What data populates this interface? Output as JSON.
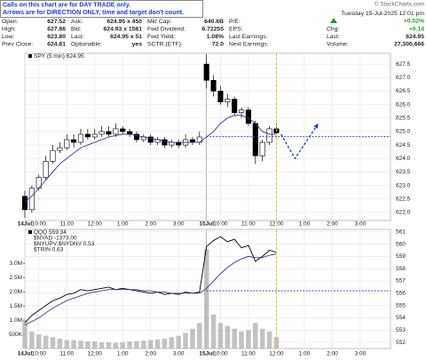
{
  "header": {
    "note_lines": [
      "Calls on this chart are for DAY TRADE only.",
      "Arrows are for DIRECTION ONLY, time and target don't count."
    ],
    "brand": "© StockCharts.com",
    "datetime": "Tuesday 15-Jul-2025 12:01 pm",
    "change_pct": "+0.02%",
    "quote": [
      [
        {
          "label": "Open:",
          "value": "627.52"
        },
        {
          "label": "High:",
          "value": "627.86"
        },
        {
          "label": "Low:",
          "value": "623.80"
        },
        {
          "label": "Prev Close:",
          "value": "624.81"
        }
      ],
      [
        {
          "label": "Ask:",
          "value": "624.95 x 450"
        },
        {
          "label": "Bid:",
          "value": "624.93 x 1581"
        },
        {
          "label": "Last:",
          "value": "624.95 x 51"
        },
        {
          "label": "Optionable:",
          "value": "yes"
        }
      ],
      [
        {
          "label": "Mkt Cap:",
          "value": "640.6B"
        },
        {
          "label": "Fwd Dividend:",
          "value": "6.72255"
        },
        {
          "label": "Fwd Yield:",
          "value": "1.08%"
        },
        {
          "label": "SCTR (ETF):",
          "value": "72.0"
        }
      ],
      [
        {
          "label": "P/E:"
        },
        {
          "label": "EPS:"
        },
        {
          "label": "Last Earnings:"
        },
        {
          "label": "Next Earnings:"
        }
      ],
      [
        {
          "label": "Chg:",
          "value": "+0.14"
        },
        {
          "label": "Last:",
          "value": "624.95"
        },
        {
          "label": "Volume:",
          "value": "27,300,666"
        }
      ]
    ]
  },
  "chart_data": [
    {
      "type": "candlestick",
      "grid": true,
      "x": [
        0,
        3,
        6,
        9,
        12,
        15,
        18,
        21,
        24,
        27,
        30,
        33,
        36,
        39,
        42,
        45,
        48,
        51,
        54,
        57,
        60,
        63,
        66,
        69,
        72,
        75,
        78,
        81,
        84,
        87,
        90,
        93,
        96,
        99,
        102,
        105,
        108
      ],
      "xlim": [
        0,
        157
      ],
      "xticks": [
        {
          "value": 0,
          "label": "14Jul"
        },
        {
          "value": 6,
          "label": "10:00"
        },
        {
          "value": 18,
          "label": "11:00"
        },
        {
          "value": 30,
          "label": "12:00"
        },
        {
          "value": 42,
          "label": "1:00"
        },
        {
          "value": 54,
          "label": "2:00"
        },
        {
          "value": 66,
          "label": "3:00"
        },
        {
          "value": 78,
          "label": "15Jul"
        },
        {
          "value": 84,
          "label": "10:00"
        },
        {
          "value": 96,
          "label": "11:00"
        },
        {
          "value": 108,
          "label": "12:00"
        },
        {
          "value": 120,
          "label": "1:00"
        },
        {
          "value": 132,
          "label": "2:00"
        },
        {
          "value": 144,
          "label": "3:00"
        }
      ],
      "ylim": [
        621.7,
        627.9
      ],
      "yticks": [
        {
          "value": 622,
          "label": "622.0"
        },
        622.5,
        {
          "value": 623,
          "label": "623.0"
        },
        623.5,
        {
          "value": 624,
          "label": "624.0"
        },
        624.5,
        {
          "value": 625,
          "label": "625.0"
        },
        625.5,
        {
          "value": 626,
          "label": "626.0"
        },
        626.5,
        {
          "value": 627,
          "label": "627.0"
        },
        627.5
      ],
      "series": [
        {
          "name": "SPY (5 min) 624.95",
          "color": "#000000",
          "open": [
            622.6,
            622.1,
            622.9,
            623.3,
            623.9,
            624.3,
            624.4,
            624.7,
            624.6,
            624.9,
            624.8,
            624.9,
            625.0,
            624.9,
            625.1,
            625.0,
            624.9,
            624.7,
            624.8,
            624.6,
            624.7,
            624.5,
            624.6,
            624.5,
            624.7,
            624.6,
            627.5,
            626.9,
            626.5,
            626.1,
            626.2,
            625.7,
            625.8,
            625.3,
            624.1,
            624.6,
            625.1
          ],
          "high": [
            622.8,
            623.0,
            623.4,
            624.1,
            624.5,
            624.6,
            624.9,
            624.9,
            625.1,
            625.1,
            625.1,
            625.2,
            625.2,
            625.3,
            625.2,
            625.1,
            625.0,
            624.9,
            624.9,
            624.8,
            624.8,
            624.7,
            624.7,
            624.9,
            624.8,
            625.0,
            627.86,
            627.1,
            626.7,
            626.4,
            626.3,
            625.9,
            625.9,
            625.4,
            624.7,
            625.2,
            625.3
          ],
          "low": [
            621.8,
            622.0,
            622.8,
            623.2,
            623.8,
            624.2,
            624.3,
            624.4,
            624.5,
            624.7,
            624.7,
            624.8,
            624.8,
            624.8,
            624.9,
            624.8,
            624.6,
            624.6,
            624.5,
            624.5,
            624.4,
            624.4,
            624.4,
            624.4,
            624.5,
            624.5,
            626.6,
            626.3,
            626.0,
            625.9,
            625.6,
            625.5,
            625.2,
            623.8,
            623.9,
            624.5,
            624.8
          ],
          "close": [
            622.1,
            622.9,
            623.3,
            623.9,
            624.3,
            624.4,
            624.7,
            624.6,
            624.9,
            624.8,
            624.9,
            625.0,
            624.9,
            625.1,
            625.0,
            624.9,
            624.7,
            624.8,
            624.6,
            624.7,
            624.5,
            624.6,
            624.5,
            624.7,
            624.6,
            624.8,
            626.9,
            626.5,
            626.1,
            626.2,
            625.7,
            625.8,
            625.3,
            624.1,
            624.6,
            625.1,
            624.95
          ]
        }
      ],
      "ma": {
        "color": "#2a3a9e",
        "values": [
          622.4,
          622.6,
          622.9,
          623.2,
          623.5,
          623.8,
          624.0,
          624.2,
          624.4,
          624.5,
          624.6,
          624.7,
          624.8,
          624.85,
          624.9,
          624.9,
          624.85,
          624.8,
          624.75,
          624.7,
          624.65,
          624.6,
          624.6,
          624.6,
          624.6,
          624.6,
          624.8,
          625.0,
          625.3,
          625.5,
          625.6,
          625.6,
          625.5,
          625.3,
          625.0,
          624.9,
          624.9
        ]
      },
      "prev_close_line": {
        "x": 78,
        "value": 624.81,
        "color": "#1a2fc0"
      },
      "current_marker": {
        "x": 108,
        "color": "#f2c200"
      },
      "projection": {
        "color": "#1a3fd0",
        "x": [
          110,
          116,
          126
        ],
        "y": [
          624.9,
          624.0,
          625.3
        ]
      }
    },
    {
      "type": "candlestick",
      "grid": true,
      "x": [
        0,
        3,
        6,
        9,
        12,
        15,
        18,
        21,
        24,
        27,
        30,
        33,
        36,
        39,
        42,
        45,
        48,
        51,
        54,
        57,
        60,
        63,
        66,
        69,
        72,
        75,
        78,
        81,
        84,
        87,
        90,
        93,
        96,
        99,
        102,
        105,
        108
      ],
      "xlim": [
        0,
        157
      ],
      "xticks": [
        {
          "value": 0,
          "label": "14Jul"
        },
        {
          "value": 6,
          "label": "10:00"
        },
        {
          "value": 18,
          "label": "11:00"
        },
        {
          "value": 30,
          "label": "12:00"
        },
        {
          "value": 42,
          "label": "1:00"
        },
        {
          "value": 54,
          "label": "2:00"
        },
        {
          "value": 66,
          "label": "3:00"
        },
        {
          "value": 78,
          "label": "15Jul"
        },
        {
          "value": 84,
          "label": "10:00"
        },
        {
          "value": 96,
          "label": "11:00"
        },
        {
          "value": 108,
          "label": "12:00"
        },
        {
          "value": 120,
          "label": "1:00"
        },
        {
          "value": 132,
          "label": "2:00"
        },
        {
          "value": 144,
          "label": "3:00"
        }
      ],
      "ylim": [
        0,
        4200000
      ],
      "yticks": [
        {
          "value": 500000,
          "label": "500K"
        },
        {
          "value": 1000000,
          "label": "1.0M"
        },
        {
          "value": 1500000,
          "label": "1.5M"
        },
        {
          "value": 2000000,
          "label": "2.0M"
        },
        {
          "value": 2500000,
          "label": "2.5M"
        },
        {
          "value": 3000000,
          "label": "3.0M"
        }
      ],
      "y2lim": [
        551.5,
        561.2
      ],
      "y2ticks": [
        552,
        553,
        554,
        555,
        556,
        557,
        558,
        559,
        560,
        561
      ],
      "indicators": [
        "$NYAD -1373.00",
        "$NYUPV:$NYDNV 0.53",
        "$TRIN 0.63"
      ],
      "series": [
        {
          "name": "QQQ 559.34",
          "color": "#000000",
          "axis": "y2",
          "values": [
            553.6,
            554.2,
            554.6,
            555.0,
            555.4,
            555.6,
            555.9,
            556.0,
            556.3,
            556.2,
            556.3,
            556.4,
            556.5,
            556.3,
            556.4,
            556.3,
            556.2,
            556.1,
            556.0,
            556.1,
            555.9,
            556.0,
            555.9,
            556.1,
            556.0,
            556.1,
            559.8,
            560.3,
            560.6,
            560.2,
            560.4,
            559.7,
            559.9,
            558.6,
            559.0,
            559.5,
            559.34
          ]
        },
        {
          "name": "Volume",
          "color": "#b4b4b4",
          "values": [
            1000000,
            600000,
            500000,
            450000,
            400000,
            350000,
            300000,
            300000,
            280000,
            250000,
            250000,
            220000,
            220000,
            200000,
            220000,
            250000,
            260000,
            280000,
            300000,
            320000,
            350000,
            400000,
            450000,
            550000,
            700000,
            900000,
            3500000,
            1200000,
            900000,
            800000,
            700000,
            600000,
            650000,
            900000,
            700000,
            600000,
            400000
          ]
        }
      ],
      "ma": {
        "color": "#2a3a9e",
        "values": [
          553.4,
          553.7,
          554.0,
          554.4,
          554.8,
          555.1,
          555.4,
          555.6,
          555.8,
          556.0,
          556.1,
          556.2,
          556.3,
          556.3,
          556.3,
          556.3,
          556.3,
          556.2,
          556.2,
          556.1,
          556.1,
          556.0,
          556.0,
          556.0,
          556.0,
          556.0,
          556.4,
          557.0,
          557.6,
          558.1,
          558.5,
          558.8,
          559.0,
          558.9,
          558.9,
          559.1,
          559.2
        ]
      },
      "prev_close_line": {
        "x": 78,
        "value": 556.2,
        "color": "#1a2fc0"
      },
      "current_marker": {
        "x": 108,
        "color": "#f2c200"
      }
    }
  ]
}
